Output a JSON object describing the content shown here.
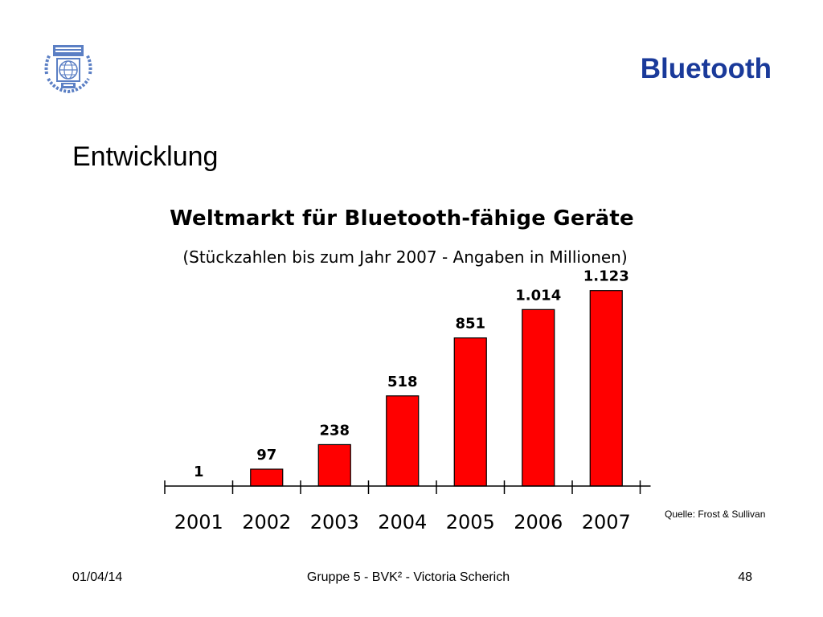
{
  "header": {
    "title": "Bluetooth",
    "logo": {
      "text_top": "WIRTSCHAFTS UNIVERSITÄT",
      "text_bottom": "WIEN",
      "color": "#5b7fc4"
    }
  },
  "section": {
    "heading": "Entwicklung"
  },
  "chart_data": {
    "type": "bar",
    "title": "Weltmarkt für Bluetooth-fähige Geräte",
    "subtitle": "(Stückzahlen bis zum Jahr 2007 - Angaben in Millionen)",
    "categories": [
      "2001",
      "2002",
      "2003",
      "2004",
      "2005",
      "2006",
      "2007"
    ],
    "values": [
      1,
      97,
      238,
      518,
      851,
      1014,
      1123
    ],
    "data_labels": [
      "1",
      "97",
      "238",
      "518",
      "851",
      "1.014",
      "1.123"
    ],
    "xlabel": "",
    "ylabel": "",
    "ylim": [
      0,
      1200
    ],
    "bar_color": "#ff0000",
    "bar_outline": "#000000",
    "grid": false,
    "legend": "none"
  },
  "source": {
    "text": "Quelle: Frost & Sullivan"
  },
  "footer": {
    "date": "01/04/14",
    "center": "Gruppe 5 - BVK² - Victoria Scherich",
    "page": "48"
  }
}
